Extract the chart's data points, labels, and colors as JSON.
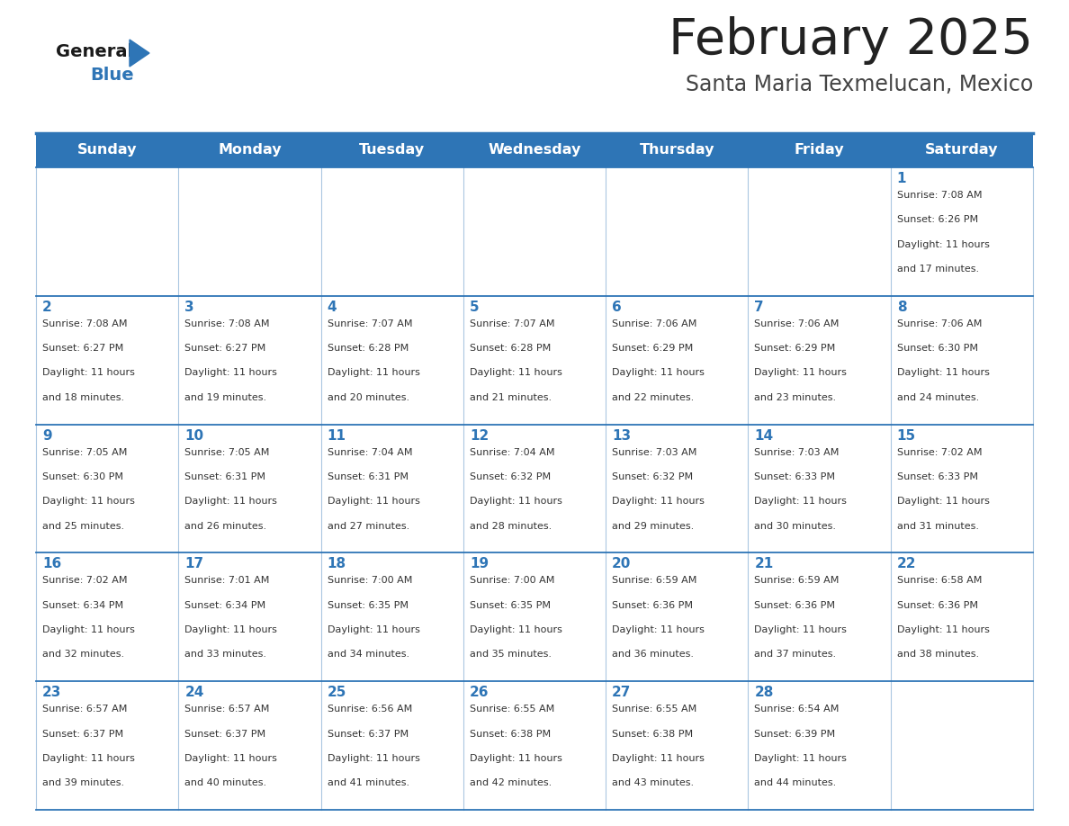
{
  "title": "February 2025",
  "subtitle": "Santa Maria Texmelucan, Mexico",
  "header_color": "#2E75B6",
  "header_text_color": "#FFFFFF",
  "cell_bg_color": "#FFFFFF",
  "title_color": "#222222",
  "subtitle_color": "#444444",
  "day_number_color": "#2E75B6",
  "text_color": "#333333",
  "line_color": "#2E75B6",
  "days_of_week": [
    "Sunday",
    "Monday",
    "Tuesday",
    "Wednesday",
    "Thursday",
    "Friday",
    "Saturday"
  ],
  "weeks": [
    [
      {
        "day": null,
        "sunrise": null,
        "sunset": null,
        "daylight": null
      },
      {
        "day": null,
        "sunrise": null,
        "sunset": null,
        "daylight": null
      },
      {
        "day": null,
        "sunrise": null,
        "sunset": null,
        "daylight": null
      },
      {
        "day": null,
        "sunrise": null,
        "sunset": null,
        "daylight": null
      },
      {
        "day": null,
        "sunrise": null,
        "sunset": null,
        "daylight": null
      },
      {
        "day": null,
        "sunrise": null,
        "sunset": null,
        "daylight": null
      },
      {
        "day": 1,
        "sunrise": "7:08 AM",
        "sunset": "6:26 PM",
        "daylight": "11 hours and 17 minutes."
      }
    ],
    [
      {
        "day": 2,
        "sunrise": "7:08 AM",
        "sunset": "6:27 PM",
        "daylight": "11 hours and 18 minutes."
      },
      {
        "day": 3,
        "sunrise": "7:08 AM",
        "sunset": "6:27 PM",
        "daylight": "11 hours and 19 minutes."
      },
      {
        "day": 4,
        "sunrise": "7:07 AM",
        "sunset": "6:28 PM",
        "daylight": "11 hours and 20 minutes."
      },
      {
        "day": 5,
        "sunrise": "7:07 AM",
        "sunset": "6:28 PM",
        "daylight": "11 hours and 21 minutes."
      },
      {
        "day": 6,
        "sunrise": "7:06 AM",
        "sunset": "6:29 PM",
        "daylight": "11 hours and 22 minutes."
      },
      {
        "day": 7,
        "sunrise": "7:06 AM",
        "sunset": "6:29 PM",
        "daylight": "11 hours and 23 minutes."
      },
      {
        "day": 8,
        "sunrise": "7:06 AM",
        "sunset": "6:30 PM",
        "daylight": "11 hours and 24 minutes."
      }
    ],
    [
      {
        "day": 9,
        "sunrise": "7:05 AM",
        "sunset": "6:30 PM",
        "daylight": "11 hours and 25 minutes."
      },
      {
        "day": 10,
        "sunrise": "7:05 AM",
        "sunset": "6:31 PM",
        "daylight": "11 hours and 26 minutes."
      },
      {
        "day": 11,
        "sunrise": "7:04 AM",
        "sunset": "6:31 PM",
        "daylight": "11 hours and 27 minutes."
      },
      {
        "day": 12,
        "sunrise": "7:04 AM",
        "sunset": "6:32 PM",
        "daylight": "11 hours and 28 minutes."
      },
      {
        "day": 13,
        "sunrise": "7:03 AM",
        "sunset": "6:32 PM",
        "daylight": "11 hours and 29 minutes."
      },
      {
        "day": 14,
        "sunrise": "7:03 AM",
        "sunset": "6:33 PM",
        "daylight": "11 hours and 30 minutes."
      },
      {
        "day": 15,
        "sunrise": "7:02 AM",
        "sunset": "6:33 PM",
        "daylight": "11 hours and 31 minutes."
      }
    ],
    [
      {
        "day": 16,
        "sunrise": "7:02 AM",
        "sunset": "6:34 PM",
        "daylight": "11 hours and 32 minutes."
      },
      {
        "day": 17,
        "sunrise": "7:01 AM",
        "sunset": "6:34 PM",
        "daylight": "11 hours and 33 minutes."
      },
      {
        "day": 18,
        "sunrise": "7:00 AM",
        "sunset": "6:35 PM",
        "daylight": "11 hours and 34 minutes."
      },
      {
        "day": 19,
        "sunrise": "7:00 AM",
        "sunset": "6:35 PM",
        "daylight": "11 hours and 35 minutes."
      },
      {
        "day": 20,
        "sunrise": "6:59 AM",
        "sunset": "6:36 PM",
        "daylight": "11 hours and 36 minutes."
      },
      {
        "day": 21,
        "sunrise": "6:59 AM",
        "sunset": "6:36 PM",
        "daylight": "11 hours and 37 minutes."
      },
      {
        "day": 22,
        "sunrise": "6:58 AM",
        "sunset": "6:36 PM",
        "daylight": "11 hours and 38 minutes."
      }
    ],
    [
      {
        "day": 23,
        "sunrise": "6:57 AM",
        "sunset": "6:37 PM",
        "daylight": "11 hours and 39 minutes."
      },
      {
        "day": 24,
        "sunrise": "6:57 AM",
        "sunset": "6:37 PM",
        "daylight": "11 hours and 40 minutes."
      },
      {
        "day": 25,
        "sunrise": "6:56 AM",
        "sunset": "6:37 PM",
        "daylight": "11 hours and 41 minutes."
      },
      {
        "day": 26,
        "sunrise": "6:55 AM",
        "sunset": "6:38 PM",
        "daylight": "11 hours and 42 minutes."
      },
      {
        "day": 27,
        "sunrise": "6:55 AM",
        "sunset": "6:38 PM",
        "daylight": "11 hours and 43 minutes."
      },
      {
        "day": 28,
        "sunrise": "6:54 AM",
        "sunset": "6:39 PM",
        "daylight": "11 hours and 44 minutes."
      },
      {
        "day": null,
        "sunrise": null,
        "sunset": null,
        "daylight": null
      }
    ]
  ],
  "logo_text1": "General",
  "logo_text2": "Blue",
  "figwidth": 11.88,
  "figheight": 9.18,
  "dpi": 100
}
